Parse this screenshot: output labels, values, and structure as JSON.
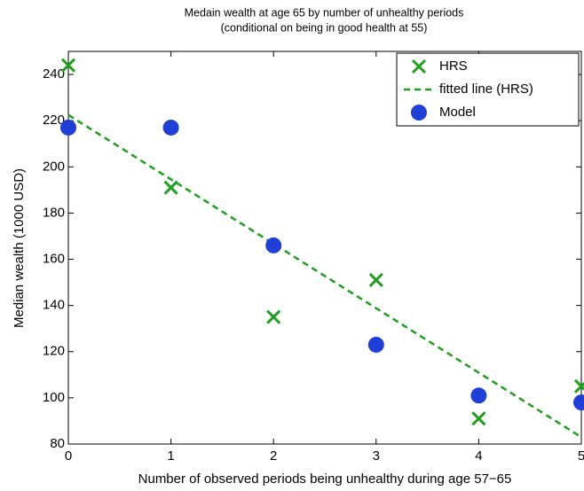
{
  "chart_data": {
    "type": "scatter",
    "title": "Medain wealth at age 65 by number of unhealthy periods",
    "subtitle": "(conditional on being in good health at 55)",
    "x_label": "Number of observed periods being unhealthy during age 57−65",
    "y_label": "Median wealth (1000 USD)",
    "xlim": [
      0,
      5
    ],
    "xticks": [
      0,
      1,
      2,
      3,
      4,
      5
    ],
    "ylim": [
      80,
      250
    ],
    "yticks": [
      80,
      100,
      120,
      140,
      160,
      180,
      200,
      220,
      240
    ],
    "legend": "upper right",
    "series": [
      {
        "name": "HRS",
        "color": "#1f9e1f",
        "marker": "x",
        "x": [
          0,
          1,
          2,
          3,
          4,
          5
        ],
        "values": [
          244,
          191,
          135,
          151,
          91,
          105
        ]
      },
      {
        "name": "fitted line (HRS)",
        "color": "#1f9e1f",
        "marker": "dashed",
        "x": [
          0,
          5
        ],
        "values": [
          222.5,
          83
        ]
      },
      {
        "name": "Model",
        "color": "#1f3fd6",
        "marker": "o",
        "x": [
          0,
          1,
          2,
          3,
          4,
          5
        ],
        "values": [
          217,
          217,
          166,
          123,
          101,
          98
        ]
      }
    ]
  }
}
